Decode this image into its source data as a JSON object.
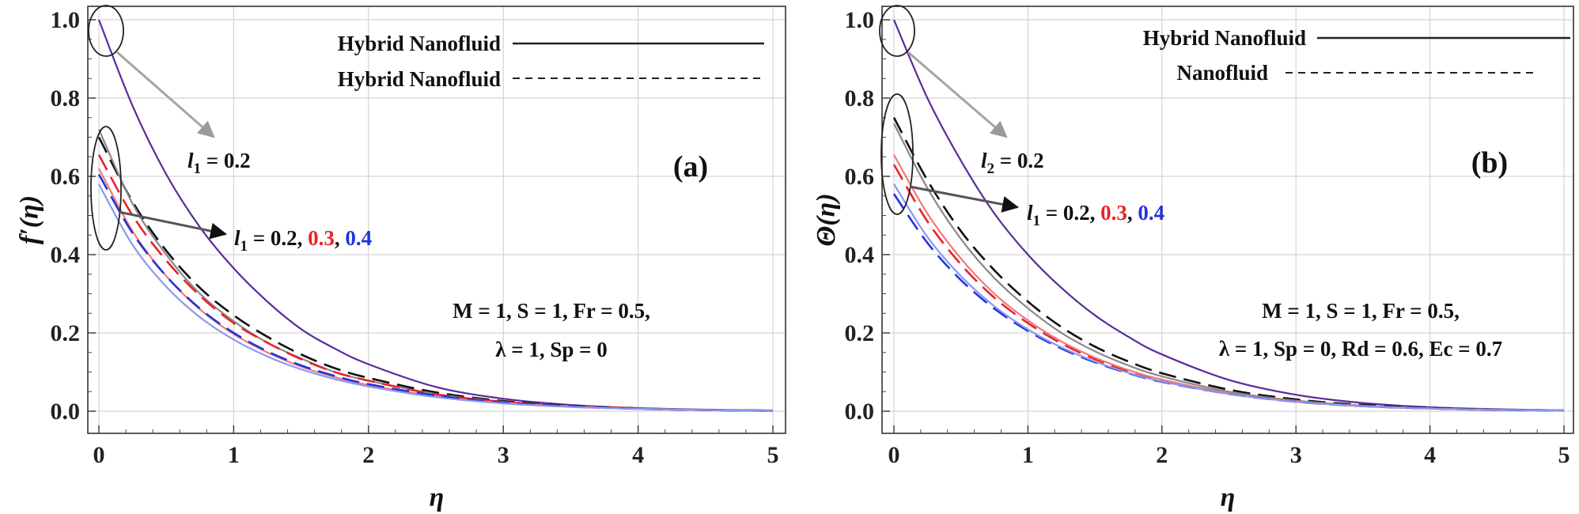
{
  "chart_data": [
    {
      "type": "line",
      "panel_label": "(a)",
      "xlabel": "η",
      "ylabel": "f′(η)",
      "xlim": [
        0,
        5
      ],
      "ylim": [
        0,
        1.05
      ],
      "xticks": [
        "0",
        "1",
        "2",
        "3",
        "4",
        "5"
      ],
      "yticks": [
        "0.0",
        "0.2",
        "0.4",
        "0.6",
        "0.8",
        "1.0"
      ],
      "grid": true,
      "legend_position": "top-right",
      "legend": [
        {
          "label": "Hybrid Nanofluid",
          "style": "solid"
        },
        {
          "label": "Hybrid Nanofluid",
          "style": "dashed"
        }
      ],
      "annotations": {
        "arrow1": {
          "sym": "l",
          "sub": "1",
          "text": " = 0.2"
        },
        "arrow2": {
          "sym": "l",
          "sub": "1",
          "prefix": " = 0.2, ",
          "v2": "0.3",
          "sep": ", ",
          "v3": "0.4"
        },
        "params_line1": "M = 1, S = 1, Fr = 0.5,",
        "params_line2": "λ = 1, Sp = 0"
      },
      "series": [
        {
          "color": "#5b2a9e",
          "style": "solid",
          "values": [
            [
              0,
              1.0
            ],
            [
              0.25,
              0.78
            ],
            [
              0.5,
              0.605
            ],
            [
              0.75,
              0.47
            ],
            [
              1,
              0.365
            ],
            [
              1.25,
              0.28
            ],
            [
              1.5,
              0.21
            ],
            [
              1.75,
              0.16
            ],
            [
              2,
              0.12
            ],
            [
              2.5,
              0.062
            ],
            [
              3,
              0.032
            ],
            [
              3.5,
              0.016
            ],
            [
              4,
              0.008
            ],
            [
              4.5,
              0.004
            ],
            [
              5,
              0.002
            ]
          ]
        },
        {
          "color": "#111111",
          "style": "dashed",
          "values": [
            [
              0,
              0.7
            ],
            [
              0.25,
              0.535
            ],
            [
              0.5,
              0.41
            ],
            [
              0.75,
              0.315
            ],
            [
              1,
              0.245
            ],
            [
              1.25,
              0.19
            ],
            [
              1.5,
              0.145
            ],
            [
              1.75,
              0.11
            ],
            [
              2,
              0.085
            ],
            [
              2.5,
              0.048
            ],
            [
              3,
              0.026
            ],
            [
              3.5,
              0.014
            ],
            [
              4,
              0.007
            ],
            [
              4.5,
              0.003
            ],
            [
              5,
              0.001
            ]
          ]
        },
        {
          "color": "#888888",
          "style": "solid",
          "values": [
            [
              0,
              0.72
            ],
            [
              0.25,
              0.53
            ],
            [
              0.5,
              0.4
            ],
            [
              0.75,
              0.3
            ],
            [
              1,
              0.23
            ],
            [
              1.25,
              0.175
            ],
            [
              1.5,
              0.135
            ],
            [
              1.75,
              0.1
            ],
            [
              2,
              0.078
            ],
            [
              2.5,
              0.044
            ],
            [
              3,
              0.024
            ],
            [
              3.5,
              0.013
            ],
            [
              4,
              0.007
            ],
            [
              4.5,
              0.003
            ],
            [
              5,
              0.001
            ]
          ]
        },
        {
          "color": "#e8232a",
          "style": "dashed",
          "values": [
            [
              0,
              0.655
            ],
            [
              0.25,
              0.5
            ],
            [
              0.5,
              0.385
            ],
            [
              0.75,
              0.295
            ],
            [
              1,
              0.225
            ],
            [
              1.25,
              0.175
            ],
            [
              1.5,
              0.133
            ],
            [
              1.75,
              0.1
            ],
            [
              2,
              0.078
            ],
            [
              2.5,
              0.043
            ],
            [
              3,
              0.024
            ],
            [
              3.5,
              0.013
            ],
            [
              4,
              0.007
            ],
            [
              4.5,
              0.003
            ],
            [
              5,
              0.001
            ]
          ]
        },
        {
          "color": "#f07a7a",
          "style": "solid",
          "values": [
            [
              0,
              0.62
            ],
            [
              0.25,
              0.46
            ],
            [
              0.5,
              0.345
            ],
            [
              0.75,
              0.26
            ],
            [
              1,
              0.197
            ],
            [
              1.25,
              0.15
            ],
            [
              1.5,
              0.114
            ],
            [
              1.75,
              0.087
            ],
            [
              2,
              0.067
            ],
            [
              2.5,
              0.038
            ],
            [
              3,
              0.021
            ],
            [
              3.5,
              0.012
            ],
            [
              4,
              0.006
            ],
            [
              4.5,
              0.003
            ],
            [
              5,
              0.001
            ]
          ]
        },
        {
          "color": "#2233dd",
          "style": "dashed",
          "values": [
            [
              0,
              0.605
            ],
            [
              0.25,
              0.455
            ],
            [
              0.5,
              0.345
            ],
            [
              0.75,
              0.262
            ],
            [
              1,
              0.2
            ],
            [
              1.25,
              0.153
            ],
            [
              1.5,
              0.117
            ],
            [
              1.75,
              0.09
            ],
            [
              2,
              0.069
            ],
            [
              2.5,
              0.04
            ],
            [
              3,
              0.022
            ],
            [
              3.5,
              0.012
            ],
            [
              4,
              0.006
            ],
            [
              4.5,
              0.003
            ],
            [
              5,
              0.001
            ]
          ]
        },
        {
          "color": "#8a98ef",
          "style": "solid",
          "values": [
            [
              0,
              0.58
            ],
            [
              0.25,
              0.425
            ],
            [
              0.5,
              0.318
            ],
            [
              0.75,
              0.24
            ],
            [
              1,
              0.183
            ],
            [
              1.25,
              0.14
            ],
            [
              1.5,
              0.107
            ],
            [
              1.75,
              0.082
            ],
            [
              2,
              0.063
            ],
            [
              2.5,
              0.036
            ],
            [
              3,
              0.02
            ],
            [
              3.5,
              0.011
            ],
            [
              4,
              0.006
            ],
            [
              4.5,
              0.003
            ],
            [
              5,
              0.001
            ]
          ]
        }
      ]
    },
    {
      "type": "line",
      "panel_label": "(b)",
      "xlabel": "η",
      "ylabel": "Θ(η)",
      "xlim": [
        0,
        5
      ],
      "ylim": [
        0,
        1.05
      ],
      "xticks": [
        "0",
        "1",
        "2",
        "3",
        "4",
        "5"
      ],
      "yticks": [
        "0.0",
        "0.2",
        "0.4",
        "0.6",
        "0.8",
        "1.0"
      ],
      "grid": true,
      "legend_position": "top-right",
      "legend": [
        {
          "label": "Hybrid Nanofluid",
          "style": "solid"
        },
        {
          "label": "Nanofluid",
          "style": "dashed"
        }
      ],
      "annotations": {
        "arrow1": {
          "sym": "l",
          "sub": "2",
          "text": " = 0.2"
        },
        "arrow2": {
          "sym": "l",
          "sub": "1",
          "prefix": " = 0.2, ",
          "v2": "0.3",
          "sep": ", ",
          "v3": "0.4"
        },
        "params_line1": "M = 1, S = 1, Fr = 0.5,",
        "params_line2": "λ = 1, Sp = 0, Rd = 0.6, Ec = 0.7"
      },
      "series": [
        {
          "color": "#5b2a9e",
          "style": "solid",
          "values": [
            [
              0,
              1.0
            ],
            [
              0.25,
              0.8
            ],
            [
              0.5,
              0.64
            ],
            [
              0.75,
              0.505
            ],
            [
              1,
              0.4
            ],
            [
              1.25,
              0.315
            ],
            [
              1.5,
              0.245
            ],
            [
              1.75,
              0.19
            ],
            [
              2,
              0.145
            ],
            [
              2.5,
              0.08
            ],
            [
              3,
              0.042
            ],
            [
              3.5,
              0.021
            ],
            [
              4,
              0.01
            ],
            [
              4.5,
              0.005
            ],
            [
              5,
              0.002
            ]
          ]
        },
        {
          "color": "#111111",
          "style": "dashed",
          "values": [
            [
              0,
              0.75
            ],
            [
              0.25,
              0.59
            ],
            [
              0.5,
              0.46
            ],
            [
              0.75,
              0.36
            ],
            [
              1,
              0.28
            ],
            [
              1.25,
              0.215
            ],
            [
              1.5,
              0.165
            ],
            [
              1.75,
              0.127
            ],
            [
              2,
              0.097
            ],
            [
              2.5,
              0.055
            ],
            [
              3,
              0.03
            ],
            [
              3.5,
              0.016
            ],
            [
              4,
              0.008
            ],
            [
              4.5,
              0.004
            ],
            [
              5,
              0.002
            ]
          ]
        },
        {
          "color": "#888888",
          "style": "solid",
          "values": [
            [
              0,
              0.735
            ],
            [
              0.25,
              0.57
            ],
            [
              0.5,
              0.44
            ],
            [
              0.75,
              0.34
            ],
            [
              1,
              0.263
            ],
            [
              1.25,
              0.2
            ],
            [
              1.5,
              0.153
            ],
            [
              1.75,
              0.117
            ],
            [
              2,
              0.089
            ],
            [
              2.5,
              0.05
            ],
            [
              3,
              0.027
            ],
            [
              3.5,
              0.014
            ],
            [
              4,
              0.007
            ],
            [
              4.5,
              0.004
            ],
            [
              5,
              0.002
            ]
          ]
        },
        {
          "color": "#e8232a",
          "style": "dashed",
          "values": [
            [
              0,
              0.63
            ],
            [
              0.25,
              0.485
            ],
            [
              0.5,
              0.375
            ],
            [
              0.75,
              0.29
            ],
            [
              1,
              0.225
            ],
            [
              1.25,
              0.173
            ],
            [
              1.5,
              0.133
            ],
            [
              1.75,
              0.102
            ],
            [
              2,
              0.078
            ],
            [
              2.5,
              0.045
            ],
            [
              3,
              0.025
            ],
            [
              3.5,
              0.013
            ],
            [
              4,
              0.007
            ],
            [
              4.5,
              0.003
            ],
            [
              5,
              0.002
            ]
          ]
        },
        {
          "color": "#f07a7a",
          "style": "solid",
          "values": [
            [
              0,
              0.655
            ],
            [
              0.25,
              0.505
            ],
            [
              0.5,
              0.39
            ],
            [
              0.75,
              0.3
            ],
            [
              1,
              0.232
            ],
            [
              1.25,
              0.178
            ],
            [
              1.5,
              0.137
            ],
            [
              1.75,
              0.105
            ],
            [
              2,
              0.081
            ],
            [
              2.5,
              0.046
            ],
            [
              3,
              0.025
            ],
            [
              3.5,
              0.014
            ],
            [
              4,
              0.007
            ],
            [
              4.5,
              0.003
            ],
            [
              5,
              0.002
            ]
          ]
        },
        {
          "color": "#2233dd",
          "style": "dashed",
          "values": [
            [
              0,
              0.555
            ],
            [
              0.25,
              0.43
            ],
            [
              0.5,
              0.335
            ],
            [
              0.75,
              0.262
            ],
            [
              1,
              0.205
            ],
            [
              1.25,
              0.16
            ],
            [
              1.5,
              0.125
            ],
            [
              1.75,
              0.097
            ],
            [
              2,
              0.075
            ],
            [
              2.5,
              0.044
            ],
            [
              3,
              0.024
            ],
            [
              3.5,
              0.013
            ],
            [
              4,
              0.007
            ],
            [
              4.5,
              0.003
            ],
            [
              5,
              0.002
            ]
          ]
        },
        {
          "color": "#8a98ef",
          "style": "solid",
          "values": [
            [
              0,
              0.58
            ],
            [
              0.25,
              0.445
            ],
            [
              0.5,
              0.345
            ],
            [
              0.75,
              0.268
            ],
            [
              1,
              0.209
            ],
            [
              1.25,
              0.163
            ],
            [
              1.5,
              0.127
            ],
            [
              1.75,
              0.098
            ],
            [
              2,
              0.076
            ],
            [
              2.5,
              0.044
            ],
            [
              3,
              0.024
            ],
            [
              3.5,
              0.013
            ],
            [
              4,
              0.007
            ],
            [
              4.5,
              0.003
            ],
            [
              5,
              0.002
            ]
          ]
        }
      ]
    }
  ]
}
